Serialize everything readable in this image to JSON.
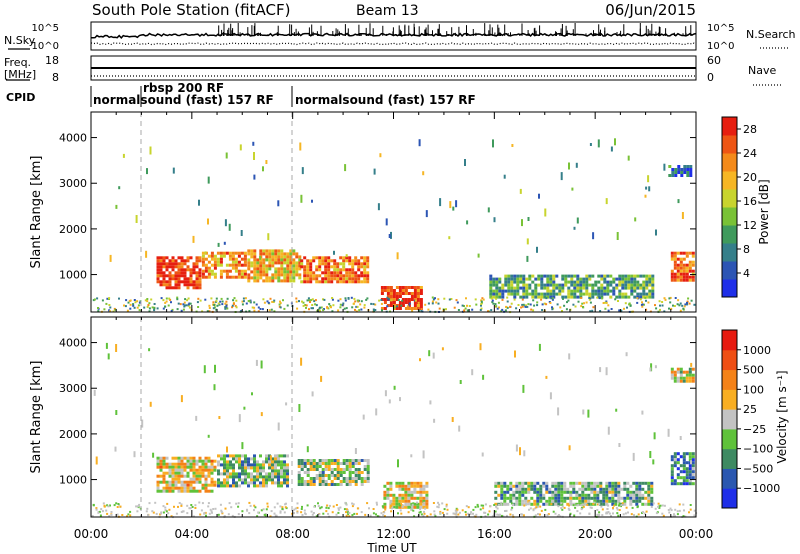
{
  "header": {
    "station": "South Pole Station (fitACF)",
    "beam": "Beam 13",
    "date": "06/Jun/2015"
  },
  "left_labels": {
    "nsky": "N.Sky",
    "freq": "Freq.",
    "freq_unit": "[MHz]",
    "cpid": "CPID"
  },
  "right_labels": {
    "nsearch": "N.Search",
    "nave": "Nave"
  },
  "noise_axis": {
    "left_top": "10^5",
    "left_bottom": "10^0",
    "right_top": "10^5",
    "right_bottom": "10^0"
  },
  "freq_axis": {
    "left_top": "18",
    "left_bottom": "8",
    "right_top": "60",
    "right_bottom": "0"
  },
  "cpid_segments": [
    {
      "label": "normalsound (fast) 157 RF",
      "start_hour": 0.0,
      "end_hour": 2.0
    },
    {
      "label": "rbsp 200 RF",
      "start_hour": 2.0,
      "end_hour": 8.0
    },
    {
      "label": "normalsound (fast) 157 RF",
      "start_hour": 8.0,
      "end_hour": 24.0
    }
  ],
  "x_axis": {
    "title": "Time UT",
    "ticks": [
      "00:00",
      "04:00",
      "08:00",
      "12:00",
      "16:00",
      "20:00",
      "00:00"
    ]
  },
  "power_colorbar": {
    "title": "Power [dB]",
    "ticks": [
      "4",
      "8",
      "12",
      "16",
      "20",
      "24",
      "28"
    ],
    "colors": [
      "#1f2fe8",
      "#2c55b4",
      "#357f8a",
      "#3f9a5c",
      "#79c236",
      "#c8d42e",
      "#f6b624",
      "#f48a1a",
      "#ee5514",
      "#e61e10"
    ]
  },
  "velocity_colorbar": {
    "title": "Velocity [m s⁻¹]",
    "ticks": [
      "1000",
      "500",
      "100",
      "25",
      "−25",
      "−100",
      "−500",
      "−1000"
    ],
    "colors": [
      "#1f2fe8",
      "#2a57b0",
      "#3e8a62",
      "#5fc23a",
      "#c3c3c3",
      "#f8ae22",
      "#f48218",
      "#ef4f14",
      "#e71a10"
    ]
  },
  "chart_data": [
    {
      "type": "heatmap",
      "title": "Power",
      "ylabel": "Slant Range [km]",
      "xlabel": "Time UT",
      "xlim": [
        0,
        24
      ],
      "ylim": [
        180,
        4560
      ],
      "yticks": [
        "1000",
        "2000",
        "3000",
        "4000"
      ],
      "colorbar_label": "Power [dB]",
      "colorbar_range": [
        0,
        30
      ],
      "regions": [
        {
          "t0": 2.6,
          "t1": 4.4,
          "r0": 700,
          "r1": 1400,
          "value": 28
        },
        {
          "t0": 4.4,
          "t1": 6.2,
          "r0": 900,
          "r1": 1500,
          "value": 22
        },
        {
          "t0": 6.2,
          "t1": 8.3,
          "r0": 850,
          "r1": 1550,
          "value": 20
        },
        {
          "t0": 8.3,
          "t1": 11.0,
          "r0": 800,
          "r1": 1400,
          "value": 24
        },
        {
          "t0": 11.5,
          "t1": 13.2,
          "r0": 250,
          "r1": 750,
          "value": 27
        },
        {
          "t0": 15.8,
          "t1": 22.3,
          "r0": 450,
          "r1": 1000,
          "value": 11
        },
        {
          "t0": 23.0,
          "t1": 23.9,
          "r0": 850,
          "r1": 1500,
          "value": 24
        },
        {
          "t0": 22.9,
          "t1": 23.9,
          "r0": 3150,
          "r1": 3400,
          "value": 6
        }
      ]
    },
    {
      "type": "heatmap",
      "title": "Velocity",
      "ylabel": "Slant Range [km]",
      "xlabel": "Time UT",
      "xlim": [
        0,
        24
      ],
      "ylim": [
        180,
        4560
      ],
      "yticks": [
        "1000",
        "2000",
        "3000",
        "4000"
      ],
      "colorbar_label": "Velocity [m s⁻¹]",
      "colorbar_range": [
        -1000,
        1000
      ],
      "regions": [
        {
          "t0": 2.6,
          "t1": 5.0,
          "r0": 700,
          "r1": 1500,
          "value": 120
        },
        {
          "t0": 5.0,
          "t1": 7.8,
          "r0": 800,
          "r1": 1550,
          "value": -200
        },
        {
          "t0": 8.2,
          "t1": 11.0,
          "r0": 850,
          "r1": 1450,
          "value": -150
        },
        {
          "t0": 11.6,
          "t1": 13.4,
          "r0": 350,
          "r1": 950,
          "value": 110
        },
        {
          "t0": 16.0,
          "t1": 22.3,
          "r0": 450,
          "r1": 950,
          "value": -250
        },
        {
          "t0": 23.0,
          "t1": 23.9,
          "r0": 900,
          "r1": 1600,
          "value": -500
        },
        {
          "t0": 23.0,
          "t1": 23.9,
          "r0": 3150,
          "r1": 3450,
          "value": 10
        }
      ]
    }
  ]
}
